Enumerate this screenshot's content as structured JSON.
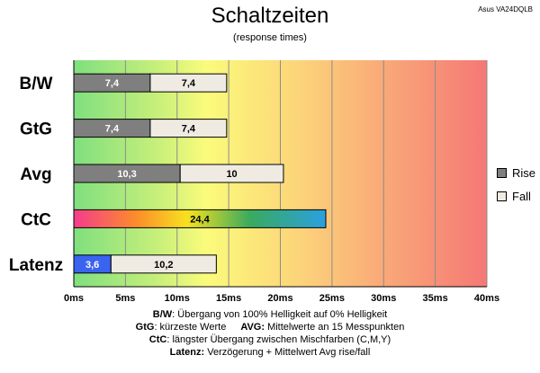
{
  "header": {
    "title": "Schaltzeiten",
    "subtitle": "(response times)",
    "model": "Asus VA24DQLB"
  },
  "legend": {
    "rise": "Rise",
    "fall": "Fall",
    "rise_color": "#7f7f7f",
    "fall_color": "#efebe3"
  },
  "notes": {
    "line1_key": "B/W",
    "line1_text": ":  Übergang von 100% Helligkeit auf 0% Helligkeit",
    "line2_key_a": "GtG",
    "line2_text_a": ": kürzeste  Werte",
    "line2_key_b": "AVG:",
    "line2_text_b": " Mittelwerte  an 15 Messpunkten",
    "line3_key": "CtC",
    "line3_text": ": längster Übergang  zwischen Mischfarben (C,M,Y)",
    "line4_key": "Latenz:",
    "line4_text": " Verzögerung  + Mittelwert  Avg rise/fall"
  },
  "chart_data": {
    "type": "bar",
    "orientation": "horizontal",
    "stacked": true,
    "title": "Schaltzeiten",
    "subtitle": "(response times)",
    "categories": [
      "B/W",
      "GtG",
      "Avg",
      "CtC",
      "Latenz"
    ],
    "series": [
      {
        "name": "Rise",
        "color": "#7f7f7f",
        "values": [
          7.4,
          7.4,
          10.3,
          null,
          null
        ]
      },
      {
        "name": "Fall",
        "color": "#efebe3",
        "values": [
          7.4,
          7.4,
          10,
          null,
          10.2
        ]
      }
    ],
    "special_bars": {
      "CtC": {
        "value": 24.4,
        "label": "24,4",
        "fill": "rainbow gradient"
      },
      "Latenz": {
        "value": 3.6,
        "label": "3,6",
        "color": "#3a63f0"
      }
    },
    "value_labels": [
      [
        "7,4",
        "7,4"
      ],
      [
        "7,4",
        "7,4"
      ],
      [
        "10,3",
        "10"
      ],
      [
        "24,4"
      ],
      [
        "3,6",
        "10,2"
      ]
    ],
    "x_ticks": [
      "0ms",
      "5ms",
      "10ms",
      "15ms",
      "20ms",
      "25ms",
      "30ms",
      "35ms",
      "40ms"
    ],
    "xlim": [
      0,
      40
    ],
    "background": "green-yellow-red gradient by response time",
    "grid": true,
    "legend_position": "right"
  }
}
